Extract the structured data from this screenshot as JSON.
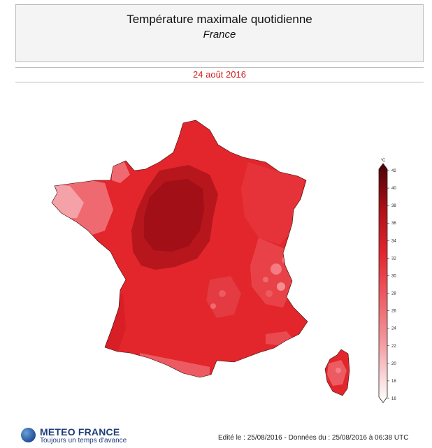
{
  "header": {
    "title": "Température maximale quotidienne",
    "subtitle": "France"
  },
  "date_label": "24 août 2016",
  "legend": {
    "unit": "°C",
    "min": 16,
    "max": 42,
    "ticks": [
      "42",
      "40",
      "38",
      "36",
      "34",
      "32",
      "30",
      "28",
      "26",
      "24",
      "22",
      "20",
      "18",
      "16"
    ]
  },
  "footer": {
    "logo_name": "METEO FRANCE",
    "logo_tagline": "Toujours un temps d'avance",
    "info": "Edité le : 25/08/2016 - Données du : 25/08/2016 à 06:38 UTC"
  },
  "colors": {
    "band_low": "#f7c6c9",
    "band_mid": "#e8303a",
    "band_high": "#8e0a12",
    "france_base": "#e2262c"
  }
}
